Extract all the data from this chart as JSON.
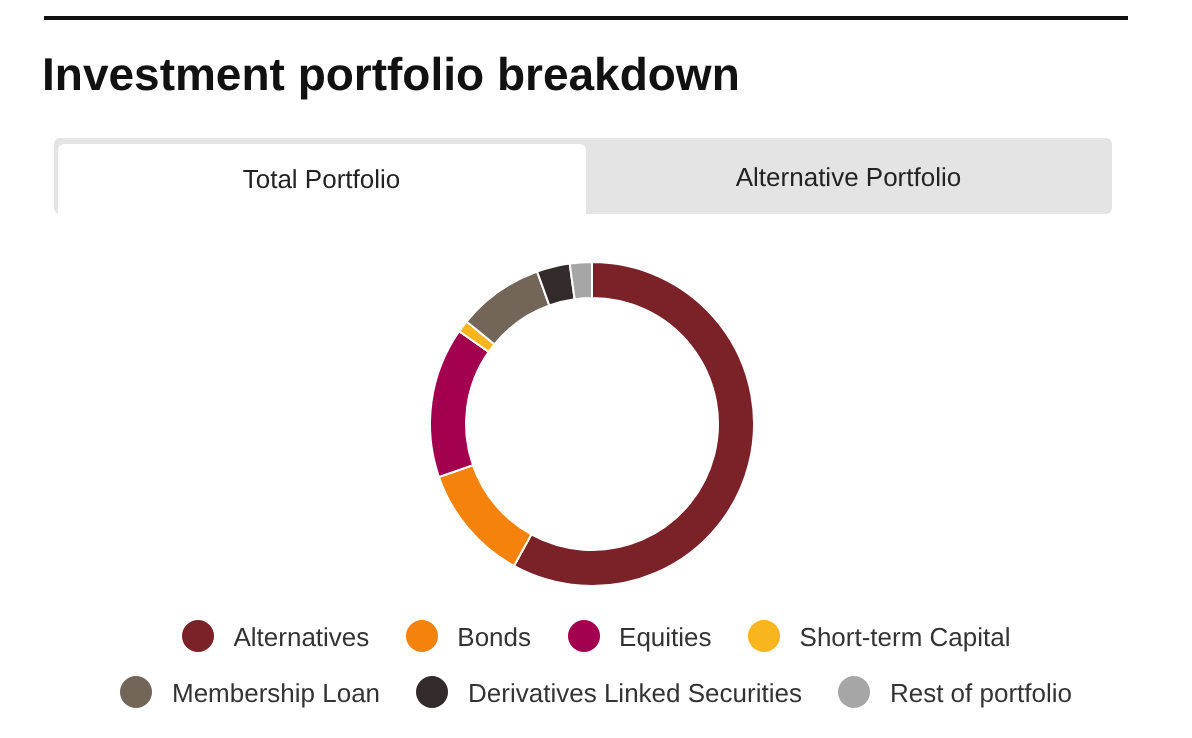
{
  "chart_data": {
    "type": "donut",
    "title": "Investment portfolio breakdown",
    "annotations": [
      "Total Portfolio",
      "Alternative Portfolio"
    ],
    "categories": [
      "Alternatives",
      "Bonds",
      "Equities",
      "Short-term Capital",
      "Membership Loan",
      "Derivatives Linked Securities",
      "Rest of portfolio"
    ],
    "values": [
      58,
      11.7,
      15,
      1.2,
      8.6,
      3.3,
      2.2
    ],
    "colors": [
      "#7b2228",
      "#f5820a",
      "#a3004f",
      "#f9b51e",
      "#736658",
      "#332b2b",
      "#a6a6a6"
    ],
    "legend": "bottom"
  }
}
